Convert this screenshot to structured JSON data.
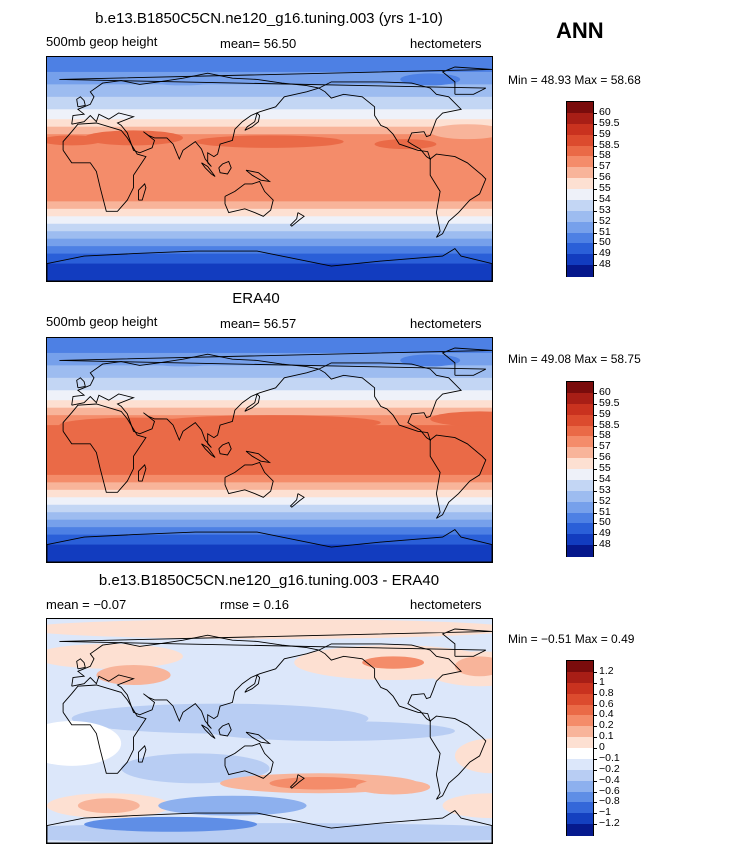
{
  "season": "ANN",
  "panels": [
    {
      "title": "b.e13.B1850C5CN.ne120_g16.tuning.003 (yrs 1-10)",
      "left": "500mb geop height",
      "center": "mean=  56.50",
      "right": "hectometers",
      "minmax": "Min =  48.93 Max =  58.68",
      "scale": "abs",
      "labels": [
        "60",
        "59.5",
        "59",
        "58.5",
        "58",
        "57",
        "56",
        "55",
        "54",
        "53",
        "52",
        "51",
        "50",
        "49",
        "48"
      ]
    },
    {
      "title": "ERA40",
      "left": "500mb geop height",
      "center": "mean=  56.57",
      "right": "hectometers",
      "minmax": "Min =  49.08 Max =  58.75",
      "scale": "abs",
      "labels": [
        "60",
        "59.5",
        "59",
        "58.5",
        "58",
        "57",
        "56",
        "55",
        "54",
        "53",
        "52",
        "51",
        "50",
        "49",
        "48"
      ]
    },
    {
      "title": "b.e13.B1850C5CN.ne120_g16.tuning.003 - ERA40",
      "left": "mean =  −0.07",
      "center": "rmse =   0.16",
      "right": "hectometers",
      "minmax": "Min =  −0.51 Max =   0.49",
      "scale": "diff",
      "labels": [
        "1.2",
        "1",
        "0.8",
        "0.6",
        "0.4",
        "0.2",
        "0.1",
        "0",
        "−0.1",
        "−0.2",
        "−0.4",
        "−0.6",
        "−0.8",
        "−1",
        "−1.2"
      ]
    }
  ],
  "colors": {
    "abs": [
      "#7a0c0c",
      "#a81e16",
      "#c9321f",
      "#dc4b2e",
      "#ea6a47",
      "#f48c6a",
      "#f8b49a",
      "#fde0d2",
      "#eef1f9",
      "#c3d6f4",
      "#9dbcf0",
      "#76a0eb",
      "#4d80e4",
      "#2a5fd8",
      "#123cbf",
      "#06188c"
    ],
    "diff": [
      "#7a0c0c",
      "#a81e16",
      "#c9321f",
      "#dc4b2e",
      "#ea6a47",
      "#f48c6a",
      "#f8b49a",
      "#fde0d2",
      "#ffffff",
      "#dce7fa",
      "#b8cdf3",
      "#8db0ee",
      "#5f8ee6",
      "#3467d9",
      "#1440c0",
      "#061a8e"
    ]
  }
}
